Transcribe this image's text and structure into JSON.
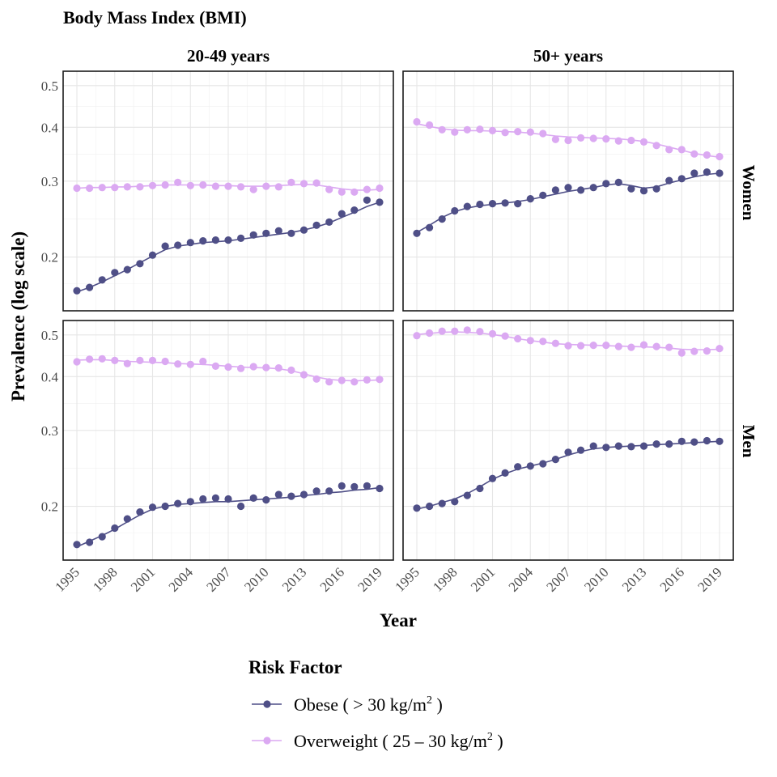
{
  "chart_data": {
    "type": "line",
    "title": "Body Mass Index (BMI)",
    "xlabel": "Year",
    "ylabel": "Prevalence (log scale)",
    "y_scale": "log",
    "ylim": [
      0.15,
      0.54
    ],
    "y_ticks": [
      0.2,
      0.3,
      0.4,
      0.5
    ],
    "y_tick_labels": [
      "0.2",
      "0.3",
      "0.4",
      "0.5"
    ],
    "xlim": [
      1995,
      2019
    ],
    "x_ticks": [
      1995,
      1998,
      2001,
      2004,
      2007,
      2010,
      2013,
      2016,
      2019
    ],
    "x_tick_labels": [
      "1995",
      "1998",
      "2001",
      "2004",
      "2007",
      "2010",
      "2013",
      "2016",
      "2019"
    ],
    "grid": true,
    "legend": {
      "title": "Risk Factor",
      "placement": "bottom",
      "entries": [
        {
          "series": "obese",
          "label_pre": "Obese ( > 30 kg/m",
          "sup": "2",
          "label_post": " )",
          "color": "#4f4f87"
        },
        {
          "series": "overweight",
          "label_pre": "Overweight ( 25 – 30 kg/m",
          "sup": "2",
          "label_post": " )",
          "color": "#dba9f2"
        }
      ]
    },
    "facets": {
      "columns": [
        "20-49 years",
        "50+ years"
      ],
      "rows": [
        "Women",
        "Men"
      ]
    },
    "x": [
      1995,
      1996,
      1997,
      1998,
      1999,
      2000,
      2001,
      2002,
      2003,
      2004,
      2005,
      2006,
      2007,
      2008,
      2009,
      2010,
      2011,
      2012,
      2013,
      2014,
      2015,
      2016,
      2017,
      2018,
      2019
    ],
    "panels": [
      {
        "row": "Women",
        "column": "20-49 years",
        "series": [
          {
            "key": "obese",
            "points": [
              0.167,
              0.17,
              0.177,
              0.184,
              0.187,
              0.193,
              0.202,
              0.212,
              0.213,
              0.216,
              0.218,
              0.219,
              0.219,
              0.221,
              0.225,
              0.227,
              0.23,
              0.227,
              0.231,
              0.237,
              0.241,
              0.252,
              0.257,
              0.271,
              0.268
            ],
            "trend": [
              0.166,
              0.17,
              0.175,
              0.181,
              0.187,
              0.194,
              0.201,
              0.208,
              0.212,
              0.214,
              0.216,
              0.217,
              0.218,
              0.22,
              0.222,
              0.224,
              0.226,
              0.228,
              0.231,
              0.235,
              0.24,
              0.247,
              0.254,
              0.262,
              0.268
            ]
          },
          {
            "key": "overweight",
            "points": [
              0.289,
              0.289,
              0.29,
              0.29,
              0.291,
              0.291,
              0.293,
              0.294,
              0.298,
              0.293,
              0.294,
              0.292,
              0.292,
              0.291,
              0.287,
              0.292,
              0.291,
              0.298,
              0.296,
              0.297,
              0.287,
              0.283,
              0.283,
              0.287,
              0.289
            ],
            "trend": [
              0.289,
              0.29,
              0.29,
              0.291,
              0.291,
              0.292,
              0.293,
              0.294,
              0.294,
              0.294,
              0.294,
              0.293,
              0.293,
              0.292,
              0.292,
              0.292,
              0.293,
              0.294,
              0.295,
              0.294,
              0.291,
              0.288,
              0.286,
              0.286,
              0.287
            ]
          }
        ]
      },
      {
        "row": "Women",
        "column": "50+ years",
        "series": [
          {
            "key": "obese",
            "points": [
              0.227,
              0.234,
              0.245,
              0.256,
              0.262,
              0.265,
              0.266,
              0.267,
              0.266,
              0.273,
              0.278,
              0.286,
              0.29,
              0.286,
              0.29,
              0.296,
              0.298,
              0.288,
              0.285,
              0.288,
              0.301,
              0.304,
              0.313,
              0.315,
              0.313
            ],
            "trend": [
              0.228,
              0.237,
              0.247,
              0.255,
              0.26,
              0.263,
              0.265,
              0.267,
              0.269,
              0.272,
              0.276,
              0.28,
              0.284,
              0.287,
              0.29,
              0.294,
              0.296,
              0.293,
              0.289,
              0.291,
              0.297,
              0.302,
              0.307,
              0.311,
              0.313
            ]
          },
          {
            "key": "overweight",
            "points": [
              0.412,
              0.405,
              0.395,
              0.39,
              0.395,
              0.396,
              0.393,
              0.389,
              0.391,
              0.39,
              0.387,
              0.375,
              0.373,
              0.378,
              0.377,
              0.376,
              0.372,
              0.373,
              0.37,
              0.363,
              0.355,
              0.355,
              0.347,
              0.345,
              0.342
            ],
            "trend": [
              0.408,
              0.402,
              0.397,
              0.394,
              0.393,
              0.393,
              0.392,
              0.391,
              0.39,
              0.388,
              0.385,
              0.382,
              0.38,
              0.379,
              0.378,
              0.377,
              0.376,
              0.374,
              0.371,
              0.366,
              0.36,
              0.354,
              0.348,
              0.344,
              0.341
            ]
          }
        ]
      },
      {
        "row": "Men",
        "column": "20-49 years",
        "series": [
          {
            "key": "obese",
            "points": [
              0.163,
              0.165,
              0.17,
              0.178,
              0.187,
              0.194,
              0.199,
              0.2,
              0.203,
              0.205,
              0.208,
              0.209,
              0.208,
              0.2,
              0.209,
              0.207,
              0.213,
              0.211,
              0.213,
              0.217,
              0.217,
              0.223,
              0.222,
              0.223,
              0.22
            ],
            "trend": [
              0.161,
              0.166,
              0.171,
              0.177,
              0.184,
              0.191,
              0.197,
              0.2,
              0.202,
              0.203,
              0.204,
              0.205,
              0.205,
              0.206,
              0.207,
              0.208,
              0.209,
              0.21,
              0.212,
              0.213,
              0.215,
              0.216,
              0.218,
              0.219,
              0.221
            ]
          },
          {
            "key": "overweight",
            "points": [
              0.433,
              0.439,
              0.44,
              0.436,
              0.429,
              0.436,
              0.436,
              0.434,
              0.428,
              0.427,
              0.434,
              0.423,
              0.421,
              0.418,
              0.422,
              0.42,
              0.419,
              0.414,
              0.404,
              0.395,
              0.389,
              0.392,
              0.389,
              0.393,
              0.394
            ],
            "trend": [
              0.437,
              0.438,
              0.438,
              0.436,
              0.434,
              0.433,
              0.432,
              0.431,
              0.429,
              0.428,
              0.427,
              0.425,
              0.423,
              0.421,
              0.42,
              0.419,
              0.417,
              0.413,
              0.406,
              0.399,
              0.394,
              0.392,
              0.391,
              0.392,
              0.393
            ]
          }
        ]
      },
      {
        "row": "Men",
        "column": "50+ years",
        "series": [
          {
            "key": "obese",
            "points": [
              0.198,
              0.2,
              0.203,
              0.205,
              0.212,
              0.22,
              0.232,
              0.239,
              0.247,
              0.248,
              0.251,
              0.257,
              0.267,
              0.27,
              0.276,
              0.274,
              0.276,
              0.275,
              0.276,
              0.279,
              0.279,
              0.283,
              0.282,
              0.284,
              0.283
            ],
            "trend": [
              0.197,
              0.2,
              0.204,
              0.208,
              0.214,
              0.222,
              0.231,
              0.238,
              0.244,
              0.248,
              0.252,
              0.257,
              0.263,
              0.268,
              0.272,
              0.274,
              0.275,
              0.276,
              0.277,
              0.278,
              0.279,
              0.28,
              0.281,
              0.282,
              0.283
            ]
          },
          {
            "key": "overweight",
            "points": [
              0.498,
              0.505,
              0.51,
              0.51,
              0.513,
              0.509,
              0.503,
              0.497,
              0.49,
              0.485,
              0.483,
              0.478,
              0.472,
              0.472,
              0.473,
              0.473,
              0.47,
              0.468,
              0.474,
              0.47,
              0.468,
              0.454,
              0.458,
              0.459,
              0.465
            ],
            "trend": [
              0.501,
              0.504,
              0.507,
              0.508,
              0.507,
              0.505,
              0.501,
              0.496,
              0.49,
              0.485,
              0.481,
              0.477,
              0.475,
              0.474,
              0.473,
              0.472,
              0.471,
              0.47,
              0.469,
              0.468,
              0.466,
              0.463,
              0.462,
              0.462,
              0.463
            ]
          }
        ]
      }
    ]
  }
}
